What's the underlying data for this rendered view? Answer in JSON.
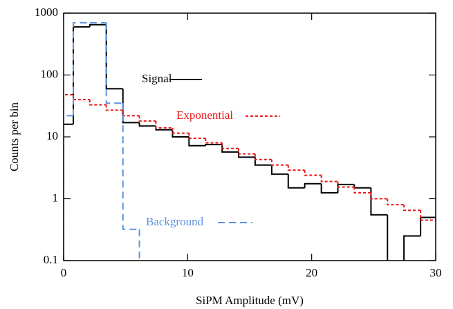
{
  "chart_data": {
    "type": "histogram",
    "xlabel": "SiPM Amplitude (mV)",
    "ylabel": "Counts per bin",
    "bins": [
      0,
      0.78,
      2.11,
      3.44,
      4.78,
      6.11,
      7.44,
      8.78,
      10.11,
      11.44,
      12.78,
      14.11,
      15.44,
      16.78,
      18.11,
      19.44,
      20.78,
      22.11,
      23.44,
      24.78,
      26.11,
      27.44,
      28.78,
      30.11
    ],
    "series": [
      {
        "name": "Signal",
        "color": "#000000",
        "dash": "none",
        "values": [
          16,
          600,
          650,
          60,
          17,
          15,
          13,
          10,
          7.2,
          7.5,
          5.7,
          4.7,
          3.5,
          2.5,
          1.5,
          1.75,
          1.25,
          1.7,
          1.5,
          0.55,
          0,
          0.25,
          0.5
        ]
      },
      {
        "name": "Exponential",
        "color": "#e8191a",
        "dash": "4,3",
        "values": [
          48,
          40,
          33,
          27,
          22,
          18,
          14,
          11.5,
          9.5,
          8,
          6.5,
          5.3,
          4.3,
          3.5,
          2.9,
          2.4,
          1.9,
          1.55,
          1.25,
          1.0,
          0.8,
          0.65,
          0.45
        ]
      },
      {
        "name": "Background",
        "color": "#5b93e0",
        "dash": "10,6",
        "values": [
          22,
          700,
          700,
          35,
          0.32,
          0,
          0,
          0,
          0,
          0,
          0,
          0,
          0,
          0,
          0,
          0,
          0,
          0,
          0,
          0,
          0,
          0,
          0
        ]
      }
    ],
    "xlim": [
      0,
      30
    ],
    "xticks": [
      0,
      10,
      20,
      30
    ],
    "ylim": [
      0.1,
      1000
    ],
    "yticks": [
      0.1,
      1,
      10,
      100,
      1000
    ],
    "ylog": true
  }
}
